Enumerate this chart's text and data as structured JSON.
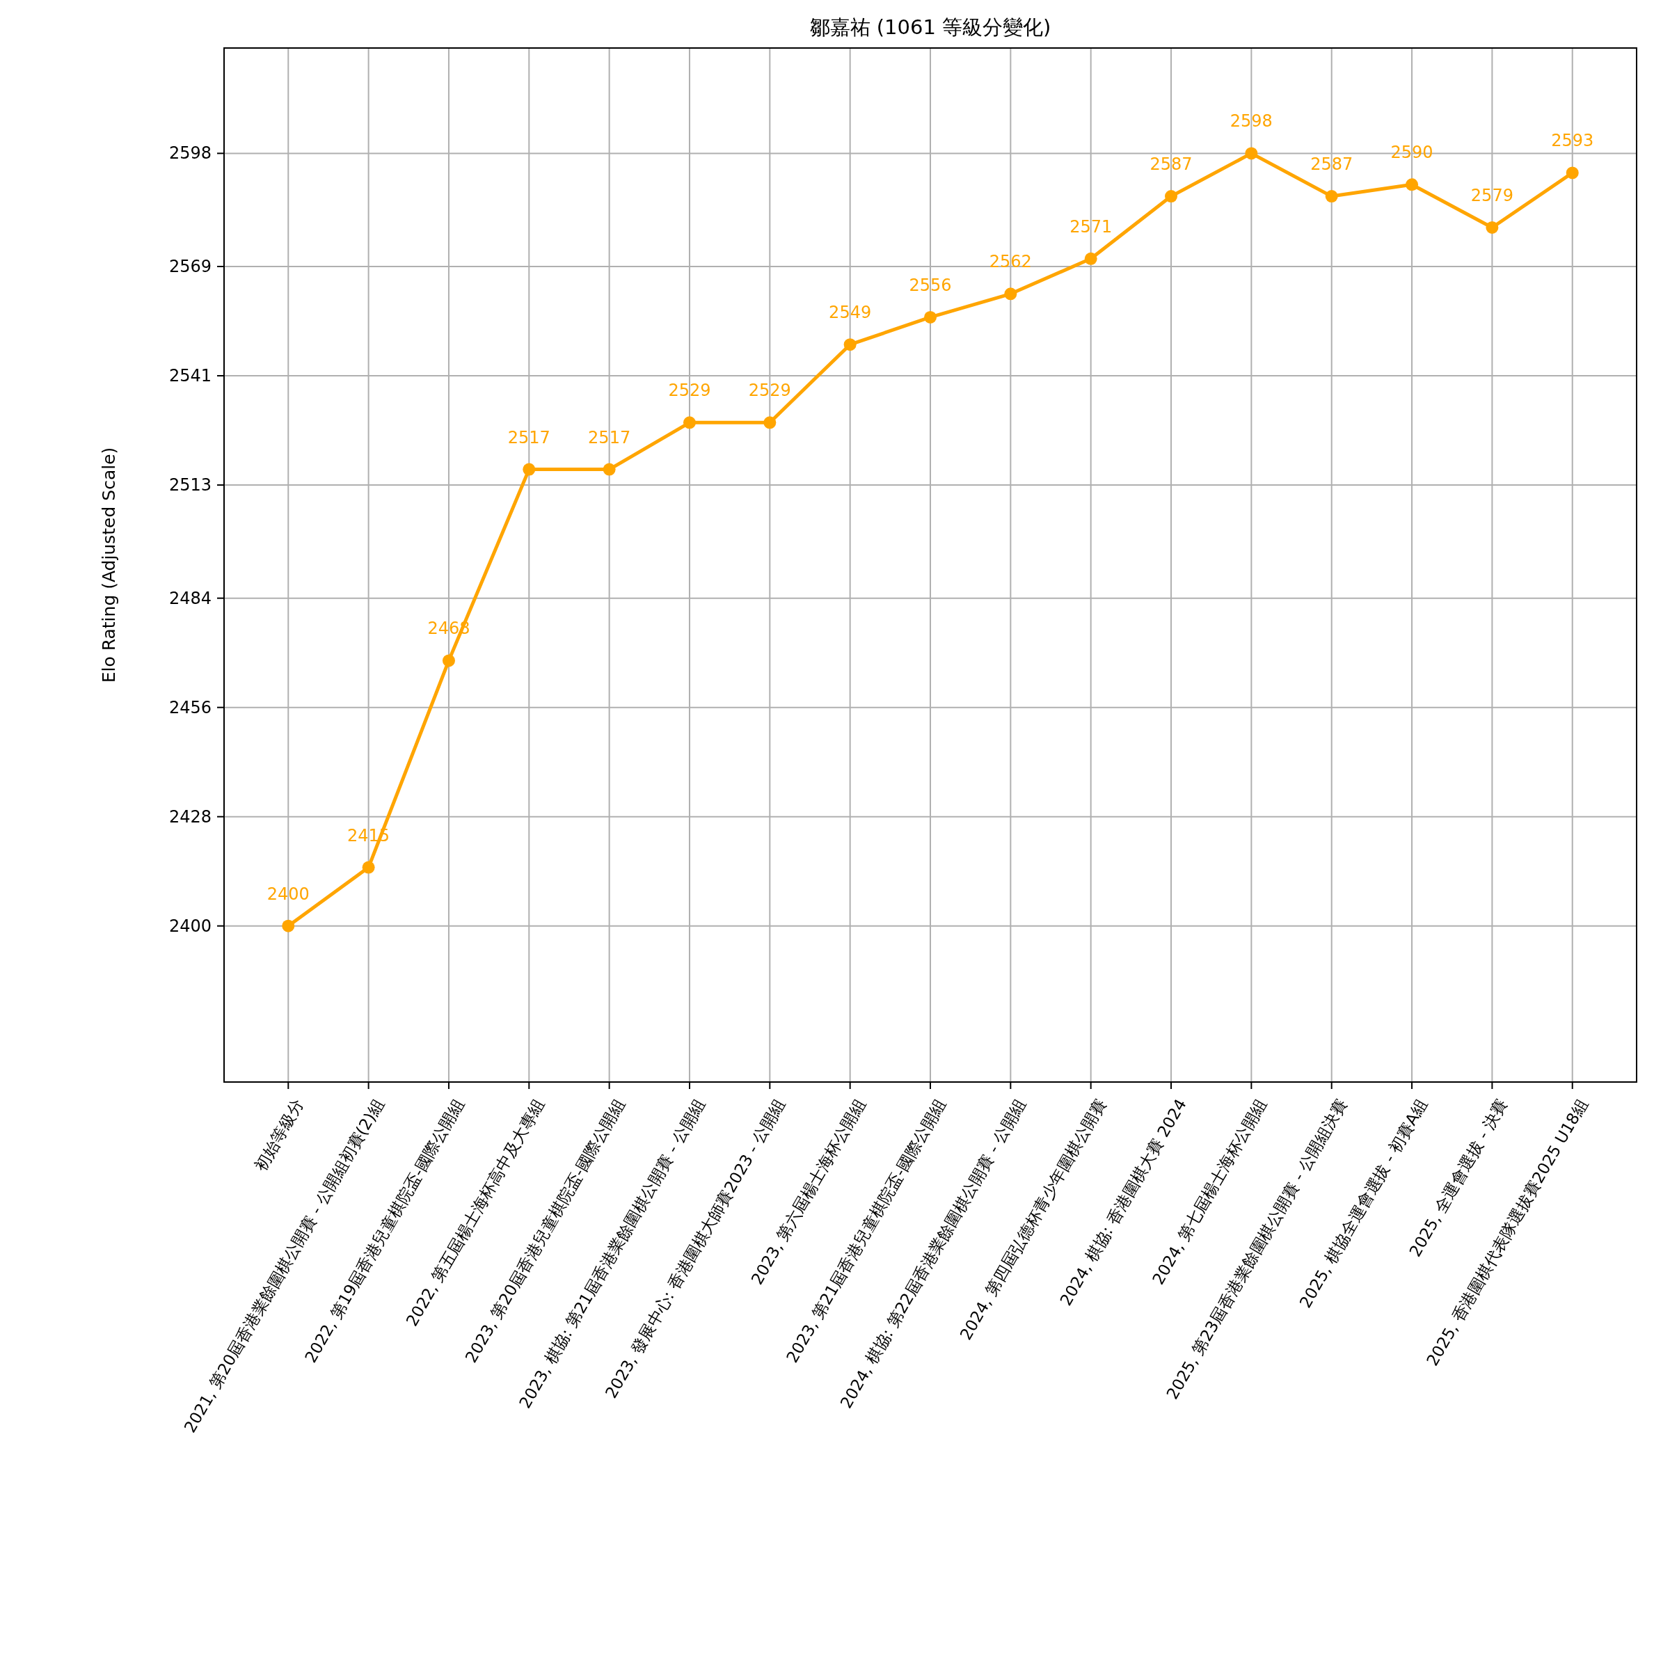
{
  "chart_data": {
    "type": "line",
    "title": "鄒嘉祐 (1061 等級分變化)",
    "ylabel": "Elo Rating (Adjusted Scale)",
    "categories": [
      "初始等級分",
      "2021, 第20屆香港業餘圍棋公開賽 - 公開組初賽(2)組",
      "2022, 第19屆香港兒童棋院盃-國際公開組",
      "2022, 第五屆楊士海杯高中及大專組",
      "2023, 第20屆香港兒童棋院盃-國際公開組",
      "2023, 棋協: 第21屆香港業餘圍棋公開賽 - 公開組",
      "2023, 發展中心: 香港圍棋大師賽2023 - 公開組",
      "2023, 第六屆楊士海杯公開組",
      "2023, 第21屆香港兒童棋院盃-國際公開組",
      "2024, 棋協: 第22屆香港業餘圍棋公開賽 - 公開組",
      "2024, 第四屆弘德杯青少年圍棋公開賽",
      "2024, 棋協: 香港圍棋大賽 2024",
      "2024, 第七屆楊士海杯公開組",
      "2025, 第23屆香港業餘圍棋公開賽 - 公開組決賽",
      "2025, 棋協全運會選拔 - 初賽A組",
      "2025, 全運會選拔 - 決賽",
      "2025, 香港圍棋代表隊選拔賽2025 U18組"
    ],
    "values": [
      2400,
      2415,
      2468,
      2517,
      2517,
      2529,
      2529,
      2549,
      2556,
      2562,
      2571,
      2587,
      2598,
      2587,
      2590,
      2579,
      2593
    ],
    "color": "#ffa500",
    "ylim": [
      2360,
      2625
    ],
    "yticks": [
      2400,
      2428,
      2456,
      2484,
      2513,
      2541,
      2569,
      2598
    ],
    "grid": true,
    "marker": "circle",
    "data_labels": true
  }
}
